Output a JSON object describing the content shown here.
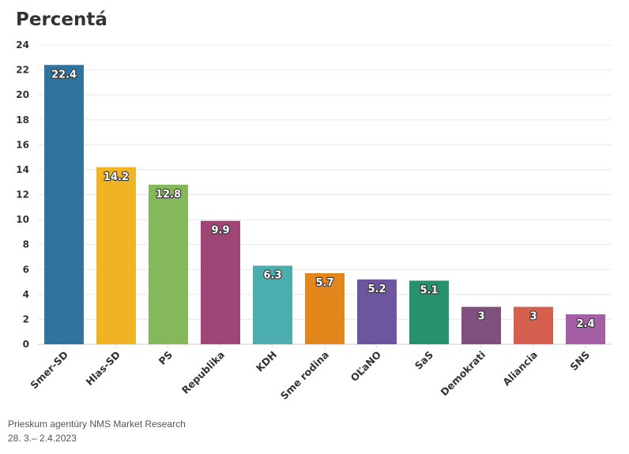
{
  "chart_data": {
    "type": "bar",
    "title": "Percentá",
    "categories": [
      "Smer-SD",
      "Hlas-SD",
      "PS",
      "Republika",
      "KDH",
      "Sme rodina",
      "OĽaNO",
      "SaS",
      "Demokrati",
      "Aliancia",
      "SNS"
    ],
    "values": [
      22.4,
      14.2,
      12.8,
      9.9,
      6.3,
      5.7,
      5.2,
      5.1,
      3,
      3,
      2.4
    ],
    "colors": [
      "#31739f",
      "#f0b323",
      "#84b85a",
      "#a04677",
      "#4badae",
      "#e3861c",
      "#6d55a0",
      "#26916a",
      "#7f507e",
      "#d5604f",
      "#a45ea4"
    ],
    "ylim": [
      0,
      24
    ],
    "yticks": [
      0,
      2,
      4,
      6,
      8,
      10,
      12,
      14,
      16,
      18,
      20,
      22,
      24
    ],
    "grid": true,
    "xlabel": "",
    "ylabel": ""
  },
  "footer": {
    "source": "Prieskum agentúry NMS Market Research",
    "date": "28. 3.– 2.4.2023"
  }
}
